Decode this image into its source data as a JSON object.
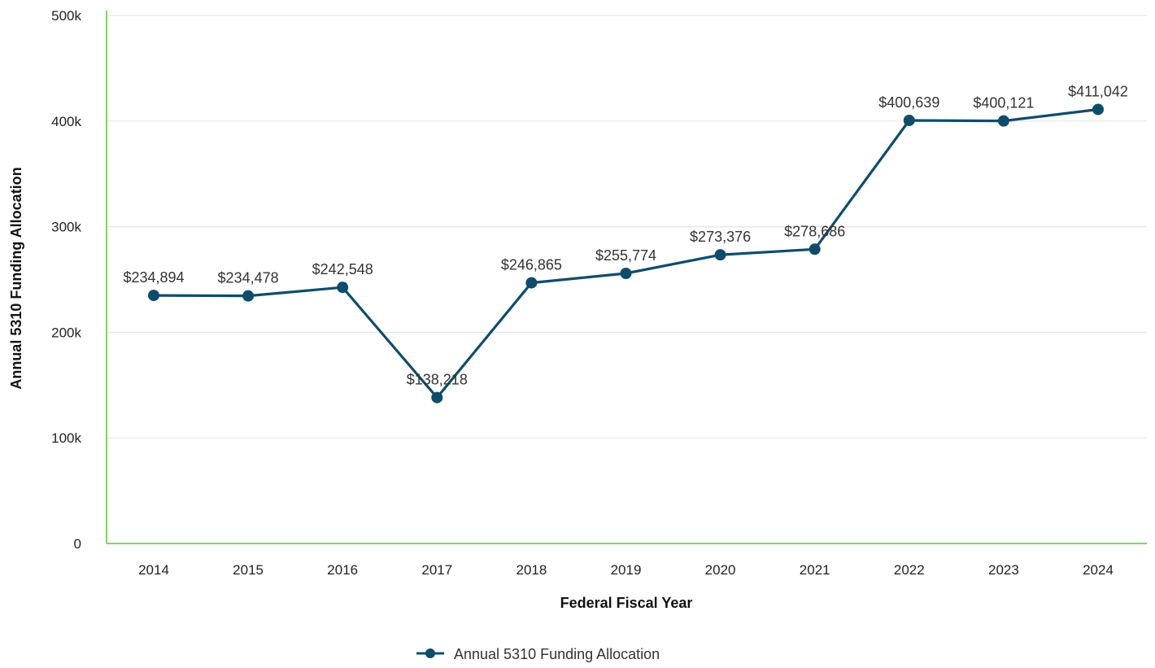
{
  "chart_data": {
    "type": "line",
    "xlabel": "Federal Fiscal Year",
    "ylabel": "Annual 5310 Funding Allocation",
    "categories": [
      "2014",
      "2015",
      "2016",
      "2017",
      "2018",
      "2019",
      "2020",
      "2021",
      "2022",
      "2023",
      "2024"
    ],
    "series": [
      {
        "name": "Annual 5310 Funding Allocation",
        "values": [
          234894,
          234478,
          242548,
          138218,
          246865,
          255774,
          273376,
          278686,
          400639,
          400121,
          411042
        ],
        "labels": [
          "$234,894",
          "$234,478",
          "$242,548",
          "$138,218",
          "$246,865",
          "$255,774",
          "$273,376",
          "$278,686",
          "$400,639",
          "$400,121",
          "$411,042"
        ],
        "color": "#0f4c6b"
      }
    ],
    "ylim": [
      0,
      500000
    ],
    "yticks": [
      {
        "value": 0,
        "label": "0"
      },
      {
        "value": 100000,
        "label": "100k"
      },
      {
        "value": 200000,
        "label": "200k"
      },
      {
        "value": 300000,
        "label": "300k"
      },
      {
        "value": 400000,
        "label": "400k"
      },
      {
        "value": 500000,
        "label": "500k"
      }
    ],
    "grid": true,
    "legend_position": "bottom-center",
    "axis_color": "#7ed957",
    "grid_color": "#e6e6e6"
  }
}
